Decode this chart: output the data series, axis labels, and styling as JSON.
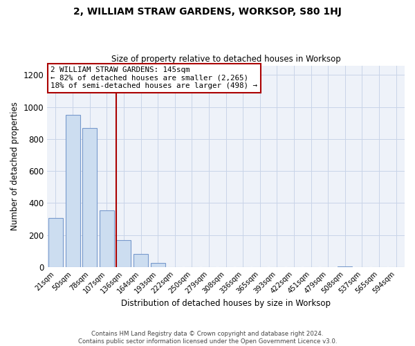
{
  "title": "2, WILLIAM STRAW GARDENS, WORKSOP, S80 1HJ",
  "subtitle": "Size of property relative to detached houses in Worksop",
  "xlabel": "Distribution of detached houses by size in Worksop",
  "ylabel": "Number of detached properties",
  "bar_labels": [
    "21sqm",
    "50sqm",
    "78sqm",
    "107sqm",
    "136sqm",
    "164sqm",
    "193sqm",
    "222sqm",
    "250sqm",
    "279sqm",
    "308sqm",
    "336sqm",
    "365sqm",
    "393sqm",
    "422sqm",
    "451sqm",
    "479sqm",
    "508sqm",
    "537sqm",
    "565sqm",
    "594sqm"
  ],
  "bar_values": [
    305,
    950,
    870,
    355,
    170,
    80,
    25,
    0,
    0,
    0,
    0,
    0,
    0,
    0,
    0,
    0,
    0,
    5,
    0,
    0,
    0
  ],
  "bar_color": "#ccddf0",
  "bar_edge_color": "#7799cc",
  "ylim": [
    0,
    1260
  ],
  "yticks": [
    0,
    200,
    400,
    600,
    800,
    1000,
    1200
  ],
  "marker_bin_index": 4,
  "marker_color": "#aa0000",
  "annotation_title": "2 WILLIAM STRAW GARDENS: 145sqm",
  "annotation_line1": "← 82% of detached houses are smaller (2,265)",
  "annotation_line2": "18% of semi-detached houses are larger (498) →",
  "annotation_box_color": "#ffffff",
  "annotation_border_color": "#aa0000",
  "footer_line1": "Contains HM Land Registry data © Crown copyright and database right 2024.",
  "footer_line2": "Contains public sector information licensed under the Open Government Licence v3.0.",
  "bg_color": "#eef2f9",
  "grid_color": "#c8d4e8"
}
